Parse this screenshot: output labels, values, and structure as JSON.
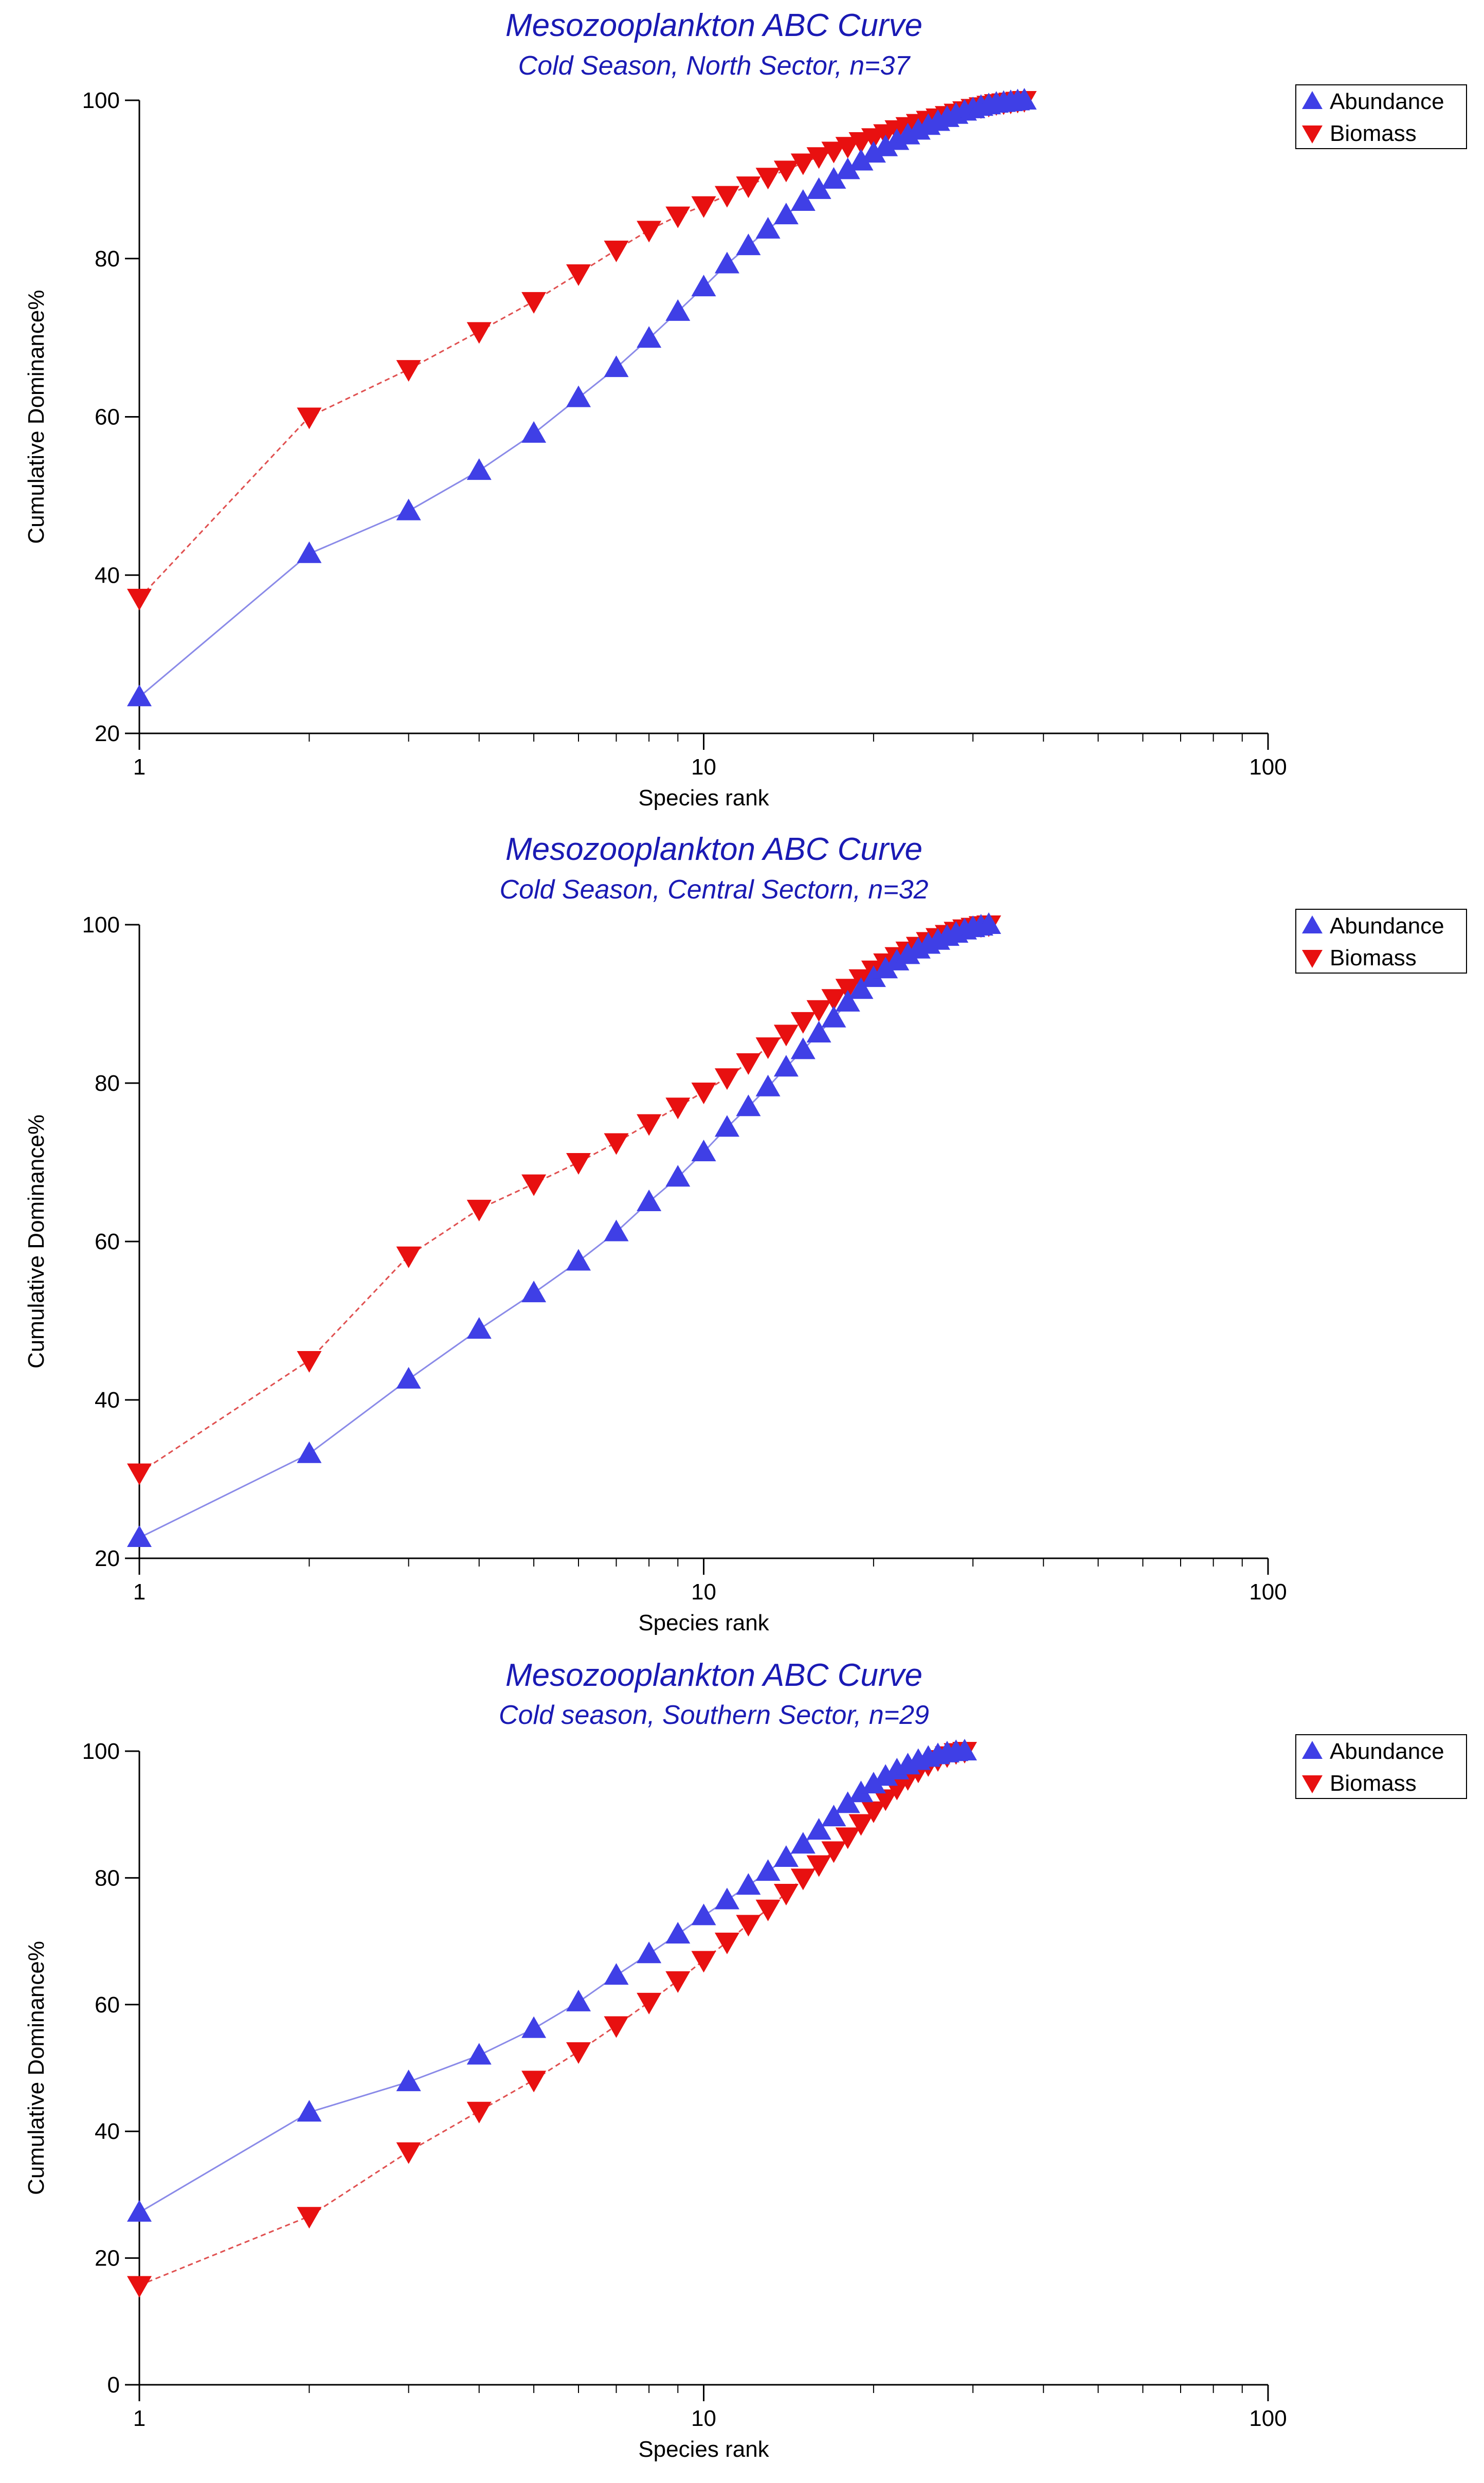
{
  "colors": {
    "abundance": "#3f3fe6",
    "abundance_line": "#8a8ae8",
    "biomass": "#e81010",
    "biomass_line": "#e05050",
    "title": "#1a1ab4"
  },
  "chart_data": [
    {
      "type": "line",
      "title": "Mesozooplankton ABC Curve",
      "subtitle": "Cold Season, North Sector, n=37",
      "xlabel": "Species rank",
      "ylabel": "Cumulative Dominance%",
      "xscale": "log",
      "xlim": [
        1,
        100
      ],
      "ylim": [
        20,
        100
      ],
      "xticks": [
        1,
        10,
        100
      ],
      "xtick_labels": [
        "1",
        "10",
        "100"
      ],
      "yticks": [
        20,
        40,
        60,
        80,
        100
      ],
      "ytick_labels": [
        "20",
        "40",
        "60",
        "80",
        "100"
      ],
      "legend": "top-right",
      "series": [
        {
          "name": "Abundance",
          "marker": "triangle-up",
          "x": [
            1,
            2,
            3,
            4,
            5,
            6,
            7,
            8,
            9,
            10,
            11,
            12,
            13,
            14,
            15,
            16,
            17,
            18,
            19,
            20,
            21,
            22,
            23,
            24,
            25,
            26,
            27,
            28,
            29,
            30,
            31,
            32,
            33,
            34,
            35,
            36,
            37
          ],
          "values": [
            24.6,
            42.7,
            48.1,
            53.2,
            57.9,
            62.4,
            66.2,
            69.9,
            73.3,
            76.4,
            79.3,
            81.6,
            83.7,
            85.5,
            87.2,
            88.7,
            90.0,
            91.2,
            92.3,
            93.3,
            94.1,
            94.9,
            95.6,
            96.2,
            96.8,
            97.3,
            97.8,
            98.2,
            98.6,
            98.9,
            99.2,
            99.4,
            99.6,
            99.7,
            99.8,
            99.9,
            100
          ]
        },
        {
          "name": "Biomass",
          "marker": "triangle-down",
          "x": [
            1,
            2,
            3,
            4,
            5,
            6,
            7,
            8,
            9,
            10,
            11,
            12,
            13,
            14,
            15,
            16,
            17,
            18,
            19,
            20,
            21,
            22,
            23,
            24,
            25,
            26,
            27,
            28,
            29,
            30,
            31,
            32,
            33,
            34,
            35,
            36,
            37
          ],
          "values": [
            37.1,
            60.0,
            66.0,
            70.8,
            74.6,
            78.1,
            81.1,
            83.6,
            85.4,
            86.7,
            88.0,
            89.2,
            90.3,
            91.2,
            92.1,
            92.9,
            93.6,
            94.2,
            94.8,
            95.3,
            95.8,
            96.3,
            96.7,
            97.1,
            97.5,
            97.8,
            98.1,
            98.4,
            98.7,
            99.0,
            99.2,
            99.4,
            99.6,
            99.7,
            99.8,
            99.9,
            100
          ]
        }
      ]
    },
    {
      "type": "line",
      "title": "Mesozooplankton ABC Curve",
      "subtitle": "Cold Season, Central Sectorn, n=32",
      "xlabel": "Species rank",
      "ylabel": "Cumulative Dominance%",
      "xscale": "log",
      "xlim": [
        1,
        100
      ],
      "ylim": [
        20,
        100
      ],
      "xticks": [
        1,
        10,
        100
      ],
      "xtick_labels": [
        "1",
        "10",
        "100"
      ],
      "yticks": [
        20,
        40,
        60,
        80,
        100
      ],
      "ytick_labels": [
        "20",
        "40",
        "60",
        "80",
        "100"
      ],
      "legend": "top-right",
      "series": [
        {
          "name": "Abundance",
          "marker": "triangle-up",
          "x": [
            1,
            2,
            3,
            4,
            5,
            6,
            7,
            8,
            9,
            10,
            11,
            12,
            13,
            14,
            15,
            16,
            17,
            18,
            19,
            20,
            21,
            22,
            23,
            24,
            25,
            26,
            27,
            28,
            29,
            30,
            31,
            32
          ],
          "values": [
            22.6,
            33.2,
            42.6,
            48.9,
            53.5,
            57.5,
            61.2,
            65.0,
            68.1,
            71.3,
            74.4,
            77.0,
            79.5,
            82.0,
            84.2,
            86.3,
            88.2,
            90.2,
            91.8,
            93.3,
            94.4,
            95.4,
            96.2,
            96.9,
            97.5,
            98.0,
            98.5,
            98.9,
            99.3,
            99.6,
            99.8,
            100
          ]
        },
        {
          "name": "Biomass",
          "marker": "triangle-down",
          "x": [
            1,
            2,
            3,
            4,
            5,
            6,
            7,
            8,
            9,
            10,
            11,
            12,
            13,
            14,
            15,
            16,
            17,
            18,
            19,
            20,
            21,
            22,
            23,
            24,
            25,
            26,
            27,
            28,
            29,
            30,
            31,
            32
          ],
          "values": [
            30.8,
            45.0,
            58.2,
            64.1,
            67.3,
            70.0,
            72.5,
            74.9,
            77.0,
            78.9,
            80.7,
            82.6,
            84.6,
            86.2,
            87.8,
            89.3,
            90.7,
            92.0,
            93.2,
            94.3,
            95.2,
            96.0,
            96.7,
            97.3,
            97.9,
            98.4,
            98.8,
            99.2,
            99.5,
            99.7,
            99.9,
            100
          ]
        }
      ]
    },
    {
      "type": "line",
      "title": "Mesozooplankton ABC Curve",
      "subtitle": "Cold season, Southern Sector, n=29",
      "xlabel": "Species rank",
      "ylabel": "Cumulative Dominance%",
      "xscale": "log",
      "xlim": [
        1,
        100
      ],
      "ylim": [
        0,
        100
      ],
      "xticks": [
        1,
        10,
        100
      ],
      "xtick_labels": [
        "1",
        "10",
        "100"
      ],
      "yticks": [
        0,
        20,
        40,
        60,
        80,
        100
      ],
      "ytick_labels": [
        "0",
        "20",
        "40",
        "60",
        "80",
        "100"
      ],
      "legend": "top-right",
      "series": [
        {
          "name": "Abundance",
          "marker": "triangle-up",
          "x": [
            1,
            2,
            3,
            4,
            5,
            6,
            7,
            8,
            9,
            10,
            11,
            12,
            13,
            14,
            15,
            16,
            17,
            18,
            19,
            20,
            21,
            22,
            23,
            24,
            25,
            26,
            27,
            28,
            29
          ],
          "values": [
            27.2,
            43.0,
            47.8,
            52.0,
            56.2,
            60.4,
            64.6,
            68.0,
            71.1,
            74.0,
            76.5,
            78.8,
            81.0,
            83.2,
            85.3,
            87.5,
            89.6,
            91.7,
            93.4,
            94.8,
            96.0,
            97.0,
            97.8,
            98.5,
            99.0,
            99.4,
            99.7,
            99.9,
            100
          ]
        },
        {
          "name": "Biomass",
          "marker": "triangle-down",
          "x": [
            1,
            2,
            3,
            4,
            5,
            6,
            7,
            8,
            9,
            10,
            11,
            12,
            13,
            14,
            15,
            16,
            17,
            18,
            19,
            20,
            21,
            22,
            23,
            24,
            25,
            26,
            27,
            28,
            29
          ],
          "values": [
            15.7,
            26.6,
            36.8,
            43.2,
            48.1,
            52.6,
            56.7,
            60.4,
            63.8,
            67.0,
            69.9,
            72.7,
            75.1,
            77.6,
            80.0,
            82.1,
            84.3,
            86.5,
            88.6,
            90.6,
            92.5,
            94.2,
            95.7,
            96.9,
            97.9,
            98.7,
            99.3,
            99.8,
            100
          ]
        }
      ]
    }
  ]
}
